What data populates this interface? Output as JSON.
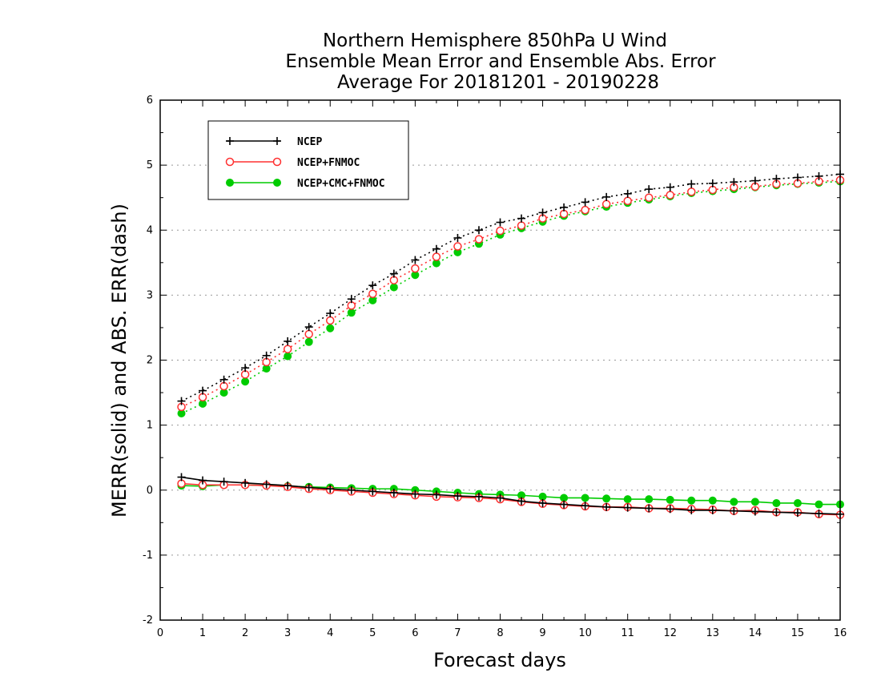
{
  "chart_data": {
    "type": "line",
    "title": [
      "Northern Hemisphere 850hPa U Wind",
      "Ensemble Mean Error and Ensemble Abs. Error",
      "Average For 20181201 - 20190228"
    ],
    "xlabel": "Forecast days",
    "ylabel": "MERR(solid) and ABS. ERR(dash)",
    "xlim": [
      0,
      16
    ],
    "ylim": [
      -2,
      6
    ],
    "xticks": [
      "0",
      "1",
      "2",
      "3",
      "4",
      "5",
      "6",
      "7",
      "8",
      "9",
      "10",
      "11",
      "12",
      "13",
      "14",
      "15",
      "16"
    ],
    "yticks": [
      "-2",
      "-1",
      "0",
      "1",
      "2",
      "3",
      "4",
      "5",
      "6"
    ],
    "grid": "horizontal dotted",
    "legend_position": "top-left",
    "x": [
      0.5,
      1,
      1.5,
      2,
      2.5,
      3,
      3.5,
      4,
      4.5,
      5,
      5.5,
      6,
      6.5,
      7,
      7.5,
      8,
      8.5,
      9,
      9.5,
      10,
      10.5,
      11,
      11.5,
      12,
      12.5,
      13,
      13.5,
      14,
      14.5,
      15,
      15.5,
      16
    ],
    "series": [
      {
        "name": "NCEP",
        "color": "#000000",
        "marker": "plus",
        "merr": [
          0.2,
          0.15,
          0.13,
          0.11,
          0.09,
          0.07,
          0.04,
          0.02,
          0.0,
          -0.02,
          -0.04,
          -0.06,
          -0.07,
          -0.09,
          -0.1,
          -0.12,
          -0.17,
          -0.2,
          -0.22,
          -0.24,
          -0.26,
          -0.27,
          -0.28,
          -0.29,
          -0.31,
          -0.31,
          -0.32,
          -0.33,
          -0.34,
          -0.35,
          -0.36,
          -0.37
        ],
        "abs_err": [
          1.37,
          1.53,
          1.7,
          1.88,
          2.07,
          2.29,
          2.51,
          2.72,
          2.94,
          3.15,
          3.33,
          3.54,
          3.71,
          3.88,
          4.0,
          4.12,
          4.18,
          4.27,
          4.35,
          4.43,
          4.51,
          4.56,
          4.63,
          4.66,
          4.71,
          4.72,
          4.74,
          4.76,
          4.79,
          4.81,
          4.83,
          4.86
        ]
      },
      {
        "name": "NCEP+FNMOC",
        "color": "#ff3030",
        "marker": "open-circle",
        "merr": [
          0.1,
          0.08,
          0.08,
          0.08,
          0.07,
          0.05,
          0.02,
          0.0,
          -0.02,
          -0.04,
          -0.06,
          -0.08,
          -0.1,
          -0.11,
          -0.12,
          -0.14,
          -0.18,
          -0.21,
          -0.23,
          -0.25,
          -0.26,
          -0.26,
          -0.28,
          -0.28,
          -0.29,
          -0.3,
          -0.32,
          -0.31,
          -0.34,
          -0.34,
          -0.37,
          -0.38
        ],
        "abs_err": [
          1.28,
          1.43,
          1.6,
          1.78,
          1.97,
          2.17,
          2.4,
          2.61,
          2.84,
          3.02,
          3.23,
          3.41,
          3.59,
          3.75,
          3.86,
          3.99,
          4.07,
          4.18,
          4.25,
          4.31,
          4.4,
          4.45,
          4.5,
          4.54,
          4.59,
          4.62,
          4.66,
          4.67,
          4.71,
          4.72,
          4.75,
          4.77
        ]
      },
      {
        "name": "NCEP+CMC+FNMOC",
        "color": "#00cc00",
        "marker": "filled-circle",
        "merr": [
          0.07,
          0.06,
          0.08,
          0.08,
          0.07,
          0.06,
          0.05,
          0.04,
          0.03,
          0.02,
          0.02,
          0.0,
          -0.02,
          -0.04,
          -0.06,
          -0.07,
          -0.08,
          -0.1,
          -0.12,
          -0.12,
          -0.13,
          -0.14,
          -0.14,
          -0.15,
          -0.16,
          -0.16,
          -0.18,
          -0.18,
          -0.2,
          -0.2,
          -0.22,
          -0.22
        ],
        "abs_err": [
          1.18,
          1.33,
          1.5,
          1.67,
          1.87,
          2.06,
          2.28,
          2.49,
          2.73,
          2.92,
          3.12,
          3.31,
          3.49,
          3.66,
          3.79,
          3.93,
          4.03,
          4.13,
          4.22,
          4.29,
          4.36,
          4.42,
          4.47,
          4.52,
          4.57,
          4.6,
          4.63,
          4.66,
          4.69,
          4.71,
          4.73,
          4.75
        ]
      }
    ]
  }
}
